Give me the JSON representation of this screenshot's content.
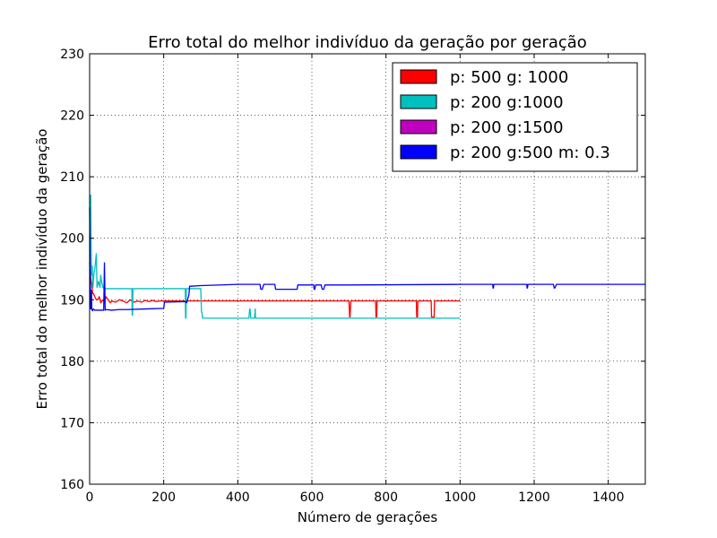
{
  "chart_data": {
    "type": "line",
    "title": "Erro total do melhor indivíduo da geração por geração",
    "xlabel": "Número de gerações",
    "ylabel": "Erro total do melhor indivíduo da geração",
    "xlim": [
      0,
      1500
    ],
    "ylim": [
      160,
      230
    ],
    "xticks": [
      0,
      200,
      400,
      600,
      800,
      1000,
      1200,
      1400
    ],
    "yticks": [
      160,
      170,
      180,
      190,
      200,
      210,
      220,
      230
    ],
    "grid": true,
    "legend_position": "top-right",
    "series": [
      {
        "name": "p: 500 g: 1000",
        "color": "#ff0000",
        "x": [
          0,
          2,
          4,
          6,
          8,
          10,
          14,
          18,
          22,
          26,
          30,
          36,
          40,
          44,
          50,
          56,
          60,
          70,
          80,
          90,
          100,
          110,
          120,
          130,
          140,
          150,
          160,
          170,
          180,
          190,
          200,
          300,
          400,
          500,
          600,
          700,
          702,
          703,
          705,
          706,
          770,
          772,
          773,
          775,
          776,
          880,
          882,
          883,
          885,
          886,
          920,
          922,
          923,
          930,
          931,
          1000
        ],
        "y": [
          196,
          194,
          193,
          192.5,
          191,
          191,
          190.5,
          190,
          190,
          190.5,
          189.5,
          190,
          189.5,
          190.5,
          190,
          189.5,
          189.8,
          189.6,
          190,
          189.8,
          189.5,
          190,
          189.6,
          189.8,
          189.6,
          189.9,
          189.7,
          189.9,
          189.7,
          189.8,
          189.8,
          189.8,
          189.8,
          189.8,
          189.8,
          189.8,
          187.2,
          187.2,
          189.8,
          189.8,
          189.8,
          189.8,
          187.2,
          187.2,
          189.8,
          189.8,
          189.8,
          187.2,
          187.2,
          189.8,
          189.8,
          189.8,
          187.2,
          187.2,
          189.8,
          189.8
        ]
      },
      {
        "name": "p: 200 g:1000",
        "color": "#00bfbf",
        "x": [
          0,
          3,
          5,
          7,
          9,
          12,
          14,
          18,
          20,
          24,
          28,
          30,
          32,
          36,
          40,
          100,
          114,
          115,
          116,
          117,
          200,
          258,
          259,
          260,
          261,
          300,
          302,
          303,
          305,
          306,
          430,
          432,
          433,
          435,
          436,
          445,
          447,
          448,
          1000
        ],
        "y": [
          200,
          207,
          194,
          195.5,
          192,
          194.5,
          195,
          197.5,
          192,
          193,
          192,
          194,
          193,
          192,
          191.8,
          191.8,
          191.8,
          187.5,
          187.5,
          191.8,
          191.8,
          191.8,
          187,
          187,
          191.8,
          191.8,
          188,
          188,
          187,
          187,
          187,
          188.5,
          188.5,
          187,
          187,
          187,
          188.5,
          187,
          187
        ]
      },
      {
        "name": "p: 200 g:1500",
        "color": "#bf00bf",
        "x": [],
        "y": []
      },
      {
        "name": "p: 200 g:500 m: 0.3",
        "color": "#0000ff",
        "x": [
          0,
          2,
          3,
          5,
          6,
          8,
          10,
          14,
          20,
          30,
          38,
          40,
          42,
          44,
          60,
          80,
          100,
          150,
          200,
          202,
          260,
          262,
          268,
          270,
          275,
          300,
          400,
          460,
          462,
          466,
          470,
          474,
          480,
          500,
          502,
          560,
          562,
          600,
          605,
          606,
          608,
          610,
          612,
          615,
          620,
          625,
          628,
          632,
          635,
          700,
          1000,
          1088,
          1089,
          1090,
          1091,
          1180,
          1181,
          1182,
          1183,
          1250,
          1252,
          1254,
          1256,
          1260,
          1500
        ],
        "y": [
          205,
          192,
          188.5,
          191.5,
          188.5,
          188.2,
          188.5,
          188.3,
          188.3,
          188.3,
          188.3,
          196,
          188.3,
          188.4,
          188.3,
          188.4,
          188.4,
          188.5,
          188.6,
          189.6,
          189.7,
          189.5,
          190.8,
          192.2,
          192.2,
          192.3,
          192.5,
          192.5,
          191.7,
          191.7,
          192.5,
          192.5,
          192.5,
          192.5,
          191.7,
          191.7,
          192.4,
          192.4,
          192.4,
          191.7,
          191.7,
          192.4,
          192.4,
          192.4,
          192.4,
          192.4,
          191.7,
          191.7,
          192.4,
          192.4,
          192.5,
          192.5,
          191.9,
          191.9,
          192.5,
          192.5,
          191.9,
          191.9,
          192.5,
          192.5,
          192.5,
          191.9,
          191.9,
          192.5,
          192.5
        ]
      }
    ]
  }
}
